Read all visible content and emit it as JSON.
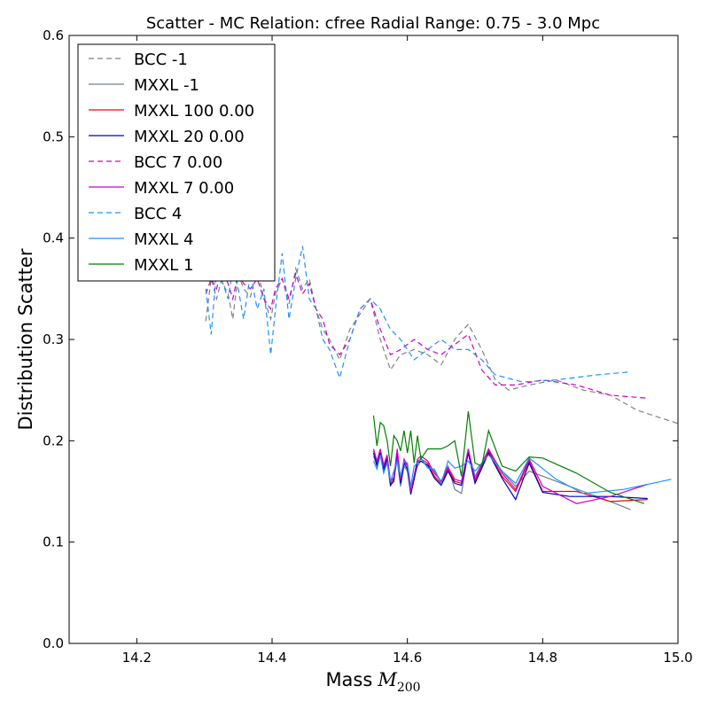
{
  "chart_data": {
    "type": "line",
    "title": "Scatter - MC Relation: cfree Radial Range: 0.75 - 3.0 Mpc",
    "xlabel": "Mass",
    "xlabel_math": "M",
    "xlabel_sub": "200",
    "ylabel": "Distribution Scatter",
    "xlim": [
      14.1,
      15.0
    ],
    "ylim": [
      0.0,
      0.6
    ],
    "xticks": [
      "14.2",
      "14.4",
      "14.6",
      "14.8",
      "15.0"
    ],
    "yticks": [
      "0.0",
      "0.1",
      "0.2",
      "0.3",
      "0.4",
      "0.5",
      "0.6"
    ],
    "grid": false,
    "legend_position": "top-left",
    "series": [
      {
        "name": "BCC -1",
        "color": "#808080",
        "dash": true,
        "x": [
          14.302,
          14.31,
          14.318,
          14.325,
          14.335,
          14.342,
          14.35,
          14.358,
          14.368,
          14.378,
          14.388,
          14.398,
          14.405,
          14.415,
          14.425,
          14.435,
          14.445,
          14.455,
          14.465,
          14.475,
          14.485,
          14.5,
          14.515,
          14.53,
          14.545,
          14.56,
          14.575,
          14.59,
          14.61,
          14.63,
          14.65,
          14.67,
          14.69,
          14.71,
          14.73,
          14.75,
          14.78,
          14.82,
          14.86,
          14.9,
          14.94,
          15.0
        ],
        "y": [
          0.318,
          0.36,
          0.34,
          0.358,
          0.345,
          0.32,
          0.365,
          0.35,
          0.342,
          0.37,
          0.34,
          0.32,
          0.345,
          0.36,
          0.335,
          0.37,
          0.35,
          0.36,
          0.33,
          0.31,
          0.3,
          0.28,
          0.31,
          0.325,
          0.34,
          0.3,
          0.27,
          0.285,
          0.29,
          0.285,
          0.275,
          0.3,
          0.315,
          0.29,
          0.26,
          0.25,
          0.255,
          0.26,
          0.25,
          0.245,
          0.23,
          0.217
        ]
      },
      {
        "name": "MXXL -1",
        "color": "#6f7f8f",
        "dash": false,
        "x": [
          14.55,
          14.555,
          14.56,
          14.565,
          14.57,
          14.575,
          14.58,
          14.585,
          14.59,
          14.595,
          14.6,
          14.605,
          14.61,
          14.615,
          14.62,
          14.63,
          14.64,
          14.65,
          14.66,
          14.67,
          14.68,
          14.69,
          14.7,
          14.72,
          14.74,
          14.76,
          14.78,
          14.82,
          14.86,
          14.9,
          14.93
        ],
        "y": [
          0.185,
          0.175,
          0.19,
          0.17,
          0.18,
          0.155,
          0.165,
          0.18,
          0.155,
          0.175,
          0.17,
          0.15,
          0.165,
          0.175,
          0.18,
          0.175,
          0.17,
          0.16,
          0.175,
          0.152,
          0.148,
          0.19,
          0.165,
          0.19,
          0.17,
          0.155,
          0.17,
          0.16,
          0.15,
          0.14,
          0.132
        ]
      },
      {
        "name": "MXXL 100 0.00",
        "color": "#ff0000",
        "dash": false,
        "x": [
          14.55,
          14.555,
          14.56,
          14.565,
          14.57,
          14.575,
          14.58,
          14.585,
          14.59,
          14.595,
          14.6,
          14.605,
          14.61,
          14.615,
          14.62,
          14.63,
          14.64,
          14.65,
          14.66,
          14.67,
          14.68,
          14.69,
          14.7,
          14.72,
          14.74,
          14.76,
          14.78,
          14.8,
          14.85,
          14.9,
          14.955
        ],
        "y": [
          0.19,
          0.178,
          0.19,
          0.175,
          0.185,
          0.158,
          0.162,
          0.19,
          0.16,
          0.18,
          0.175,
          0.148,
          0.165,
          0.18,
          0.182,
          0.178,
          0.165,
          0.158,
          0.172,
          0.16,
          0.158,
          0.19,
          0.16,
          0.19,
          0.165,
          0.15,
          0.18,
          0.15,
          0.15,
          0.14,
          0.142
        ]
      },
      {
        "name": "MXXL 20 0.00",
        "color": "#0000cc",
        "dash": false,
        "x": [
          14.55,
          14.555,
          14.56,
          14.565,
          14.57,
          14.575,
          14.58,
          14.585,
          14.59,
          14.595,
          14.6,
          14.605,
          14.61,
          14.615,
          14.62,
          14.63,
          14.64,
          14.65,
          14.66,
          14.67,
          14.68,
          14.69,
          14.7,
          14.72,
          14.74,
          14.76,
          14.78,
          14.8,
          14.84,
          14.9,
          14.955
        ],
        "y": [
          0.188,
          0.176,
          0.188,
          0.172,
          0.182,
          0.156,
          0.16,
          0.188,
          0.158,
          0.178,
          0.172,
          0.147,
          0.162,
          0.178,
          0.18,
          0.176,
          0.163,
          0.156,
          0.17,
          0.158,
          0.156,
          0.188,
          0.158,
          0.188,
          0.163,
          0.142,
          0.178,
          0.149,
          0.145,
          0.145,
          0.143
        ]
      },
      {
        "name": "BCC 7 0.00",
        "color": "#cc00cc",
        "dash": true,
        "x": [
          14.302,
          14.31,
          14.318,
          14.325,
          14.335,
          14.342,
          14.35,
          14.358,
          14.368,
          14.378,
          14.388,
          14.398,
          14.405,
          14.415,
          14.425,
          14.435,
          14.445,
          14.455,
          14.465,
          14.475,
          14.485,
          14.5,
          14.515,
          14.53,
          14.545,
          14.56,
          14.575,
          14.59,
          14.61,
          14.63,
          14.65,
          14.67,
          14.69,
          14.71,
          14.73,
          14.76,
          14.8,
          14.85,
          14.9,
          14.955
        ],
        "y": [
          0.345,
          0.36,
          0.35,
          0.37,
          0.355,
          0.34,
          0.365,
          0.355,
          0.35,
          0.36,
          0.34,
          0.33,
          0.35,
          0.36,
          0.34,
          0.365,
          0.345,
          0.355,
          0.33,
          0.32,
          0.295,
          0.285,
          0.3,
          0.33,
          0.34,
          0.31,
          0.285,
          0.29,
          0.3,
          0.29,
          0.285,
          0.295,
          0.305,
          0.27,
          0.255,
          0.255,
          0.26,
          0.255,
          0.245,
          0.242
        ]
      },
      {
        "name": "MXXL 7 0.00",
        "color": "#cc00cc",
        "dash": false,
        "x": [
          14.55,
          14.555,
          14.56,
          14.565,
          14.57,
          14.575,
          14.58,
          14.585,
          14.59,
          14.595,
          14.6,
          14.605,
          14.61,
          14.615,
          14.62,
          14.63,
          14.64,
          14.65,
          14.66,
          14.67,
          14.68,
          14.69,
          14.7,
          14.72,
          14.74,
          14.76,
          14.78,
          14.8,
          14.85,
          14.9,
          14.955
        ],
        "y": [
          0.192,
          0.18,
          0.192,
          0.176,
          0.186,
          0.16,
          0.164,
          0.192,
          0.162,
          0.182,
          0.176,
          0.15,
          0.166,
          0.182,
          0.185,
          0.18,
          0.168,
          0.16,
          0.174,
          0.162,
          0.16,
          0.192,
          0.162,
          0.192,
          0.168,
          0.152,
          0.182,
          0.155,
          0.138,
          0.145,
          0.157
        ]
      },
      {
        "name": "BCC 4",
        "color": "#1e90ff",
        "dash": true,
        "x": [
          14.302,
          14.31,
          14.318,
          14.325,
          14.335,
          14.342,
          14.35,
          14.358,
          14.368,
          14.378,
          14.388,
          14.398,
          14.405,
          14.415,
          14.425,
          14.435,
          14.445,
          14.455,
          14.465,
          14.475,
          14.485,
          14.5,
          14.515,
          14.53,
          14.545,
          14.56,
          14.575,
          14.59,
          14.61,
          14.63,
          14.65,
          14.67,
          14.69,
          14.71,
          14.73,
          14.77,
          14.82,
          14.88,
          14.93
        ],
        "y": [
          0.35,
          0.305,
          0.37,
          0.36,
          0.34,
          0.37,
          0.35,
          0.32,
          0.365,
          0.33,
          0.35,
          0.285,
          0.33,
          0.385,
          0.32,
          0.36,
          0.392,
          0.34,
          0.33,
          0.3,
          0.29,
          0.262,
          0.3,
          0.33,
          0.34,
          0.33,
          0.31,
          0.3,
          0.28,
          0.29,
          0.3,
          0.29,
          0.29,
          0.28,
          0.265,
          0.258,
          0.26,
          0.265,
          0.268
        ]
      },
      {
        "name": "MXXL 4",
        "color": "#1e90ff",
        "dash": false,
        "x": [
          14.55,
          14.555,
          14.56,
          14.565,
          14.57,
          14.575,
          14.58,
          14.585,
          14.59,
          14.595,
          14.6,
          14.605,
          14.61,
          14.615,
          14.62,
          14.63,
          14.64,
          14.65,
          14.66,
          14.67,
          14.68,
          14.69,
          14.7,
          14.72,
          14.74,
          14.76,
          14.78,
          14.82,
          14.86,
          14.92,
          14.99
        ],
        "y": [
          0.18,
          0.172,
          0.186,
          0.168,
          0.178,
          0.16,
          0.17,
          0.18,
          0.165,
          0.18,
          0.178,
          0.155,
          0.175,
          0.178,
          0.183,
          0.173,
          0.172,
          0.158,
          0.18,
          0.173,
          0.175,
          0.18,
          0.17,
          0.186,
          0.17,
          0.158,
          0.183,
          0.162,
          0.148,
          0.152,
          0.162
        ]
      },
      {
        "name": "MXXL 1",
        "color": "#008000",
        "dash": false,
        "x": [
          14.55,
          14.555,
          14.56,
          14.565,
          14.57,
          14.575,
          14.58,
          14.585,
          14.59,
          14.595,
          14.6,
          14.605,
          14.61,
          14.615,
          14.62,
          14.63,
          14.64,
          14.65,
          14.66,
          14.67,
          14.68,
          14.69,
          14.7,
          14.71,
          14.72,
          14.74,
          14.76,
          14.78,
          14.8,
          14.85,
          14.9,
          14.95
        ],
        "y": [
          0.225,
          0.195,
          0.218,
          0.215,
          0.2,
          0.175,
          0.205,
          0.2,
          0.19,
          0.21,
          0.188,
          0.21,
          0.178,
          0.205,
          0.182,
          0.192,
          0.192,
          0.192,
          0.195,
          0.2,
          0.165,
          0.229,
          0.178,
          0.175,
          0.21,
          0.175,
          0.17,
          0.184,
          0.183,
          0.168,
          0.149,
          0.138
        ]
      }
    ]
  }
}
